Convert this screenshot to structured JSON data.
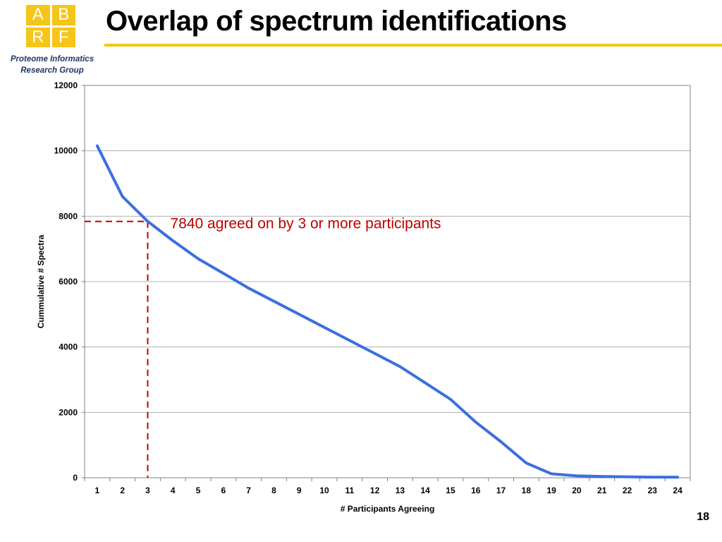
{
  "logo": {
    "letters": [
      "A",
      "B",
      "R",
      "F"
    ]
  },
  "org": {
    "line1": "Proteome Informatics",
    "line2": "Research Group"
  },
  "slide": {
    "title": "Overlap of spectrum identifications",
    "page_number": "18"
  },
  "colors": {
    "accent": "#f5c518",
    "series": "#3b6fe0",
    "annotation": "#c00000",
    "grid": "#b0b0b0"
  },
  "chart_data": {
    "type": "line",
    "xlabel": "# Participants Agreeing",
    "ylabel": "Cummulative # Spectra",
    "ylim": [
      0,
      12000
    ],
    "yticks": [
      0,
      2000,
      4000,
      6000,
      8000,
      10000,
      12000
    ],
    "categories": [
      "1",
      "2",
      "3",
      "4",
      "5",
      "6",
      "7",
      "8",
      "9",
      "10",
      "11",
      "12",
      "13",
      "14",
      "15",
      "16",
      "17",
      "18",
      "19",
      "20",
      "21",
      "22",
      "23",
      "24"
    ],
    "series": [
      {
        "values": [
          10150,
          8600,
          7840,
          7250,
          6700,
          6250,
          5800,
          5400,
          5000,
          4600,
          4200,
          3800,
          3400,
          2900,
          2400,
          1700,
          1100,
          450,
          120,
          60,
          40,
          30,
          20,
          20
        ]
      }
    ],
    "grid": true,
    "annotation": {
      "text": "7840 agreed on by 3 or more participants",
      "x": 3,
      "y": 7840
    }
  }
}
